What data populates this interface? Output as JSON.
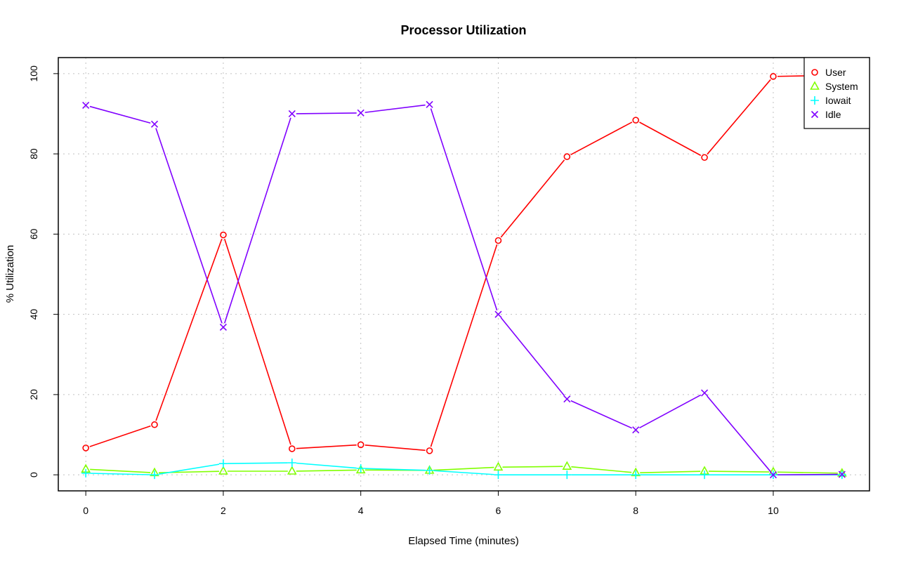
{
  "chart_data": {
    "type": "line",
    "title": "Processor Utilization",
    "xlabel": "Elapsed Time (minutes)",
    "ylabel": "% Utilization",
    "xlim": [
      -0.4,
      11.4
    ],
    "ylim": [
      -4,
      104
    ],
    "xticks": [
      0,
      2,
      4,
      6,
      8,
      10
    ],
    "yticks": [
      0,
      20,
      40,
      60,
      80,
      100
    ],
    "grid": true,
    "legend_position": "top-right",
    "x": [
      0,
      1,
      2,
      3,
      4,
      5,
      6,
      7,
      8,
      9,
      10,
      11
    ],
    "series": [
      {
        "name": "User",
        "color": "#ff0000",
        "marker": "circle",
        "values": [
          6.7,
          12.5,
          59.8,
          6.5,
          7.5,
          6.0,
          58.4,
          79.3,
          88.4,
          79.1,
          99.3,
          99.6
        ]
      },
      {
        "name": "System",
        "color": "#80ff00",
        "marker": "triangle",
        "values": [
          1.4,
          0.5,
          0.9,
          0.9,
          1.2,
          1.1,
          1.9,
          2.1,
          0.5,
          0.9,
          0.7,
          0.4
        ]
      },
      {
        "name": "Iowait",
        "color": "#00ffff",
        "marker": "plus",
        "values": [
          0.4,
          0.0,
          2.8,
          3.0,
          1.6,
          1.1,
          0.0,
          0.0,
          0.0,
          0.0,
          0.0,
          0.0
        ]
      },
      {
        "name": "Idle",
        "color": "#8000ff",
        "marker": "cross",
        "values": [
          92.1,
          87.4,
          36.8,
          90.0,
          90.2,
          92.3,
          40.0,
          18.9,
          11.2,
          20.4,
          0.0,
          0.1
        ]
      }
    ]
  }
}
